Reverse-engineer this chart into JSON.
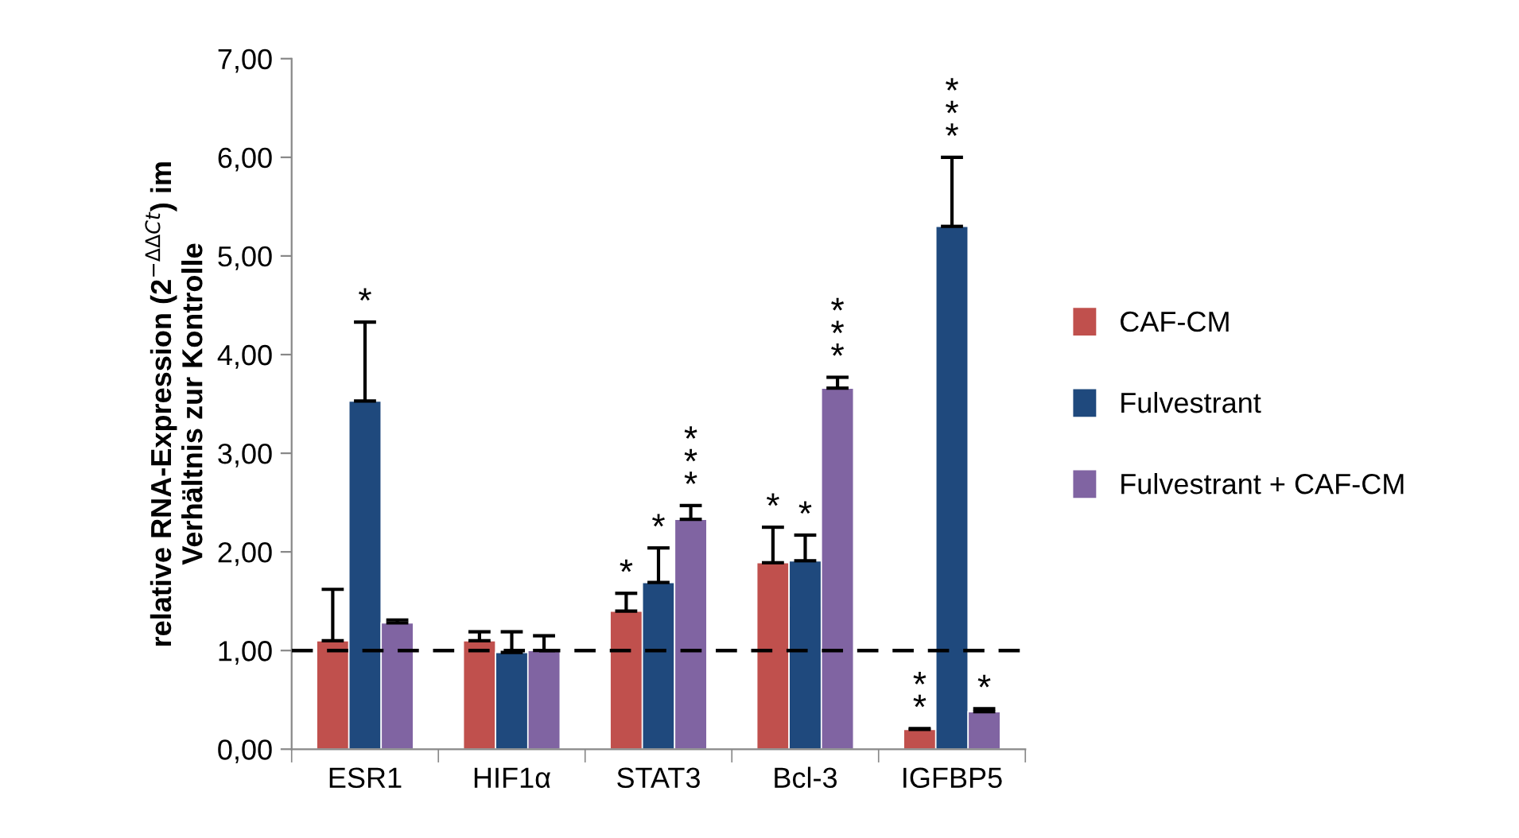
{
  "chart_data": {
    "type": "bar",
    "ylabel": "relative RNA-Expression (2$^{−ΔΔCt}$) im\nVerhältnis zur Kontrolle",
    "categories": [
      "ESR1",
      "HIF1α",
      "STAT3",
      "Bcl-3",
      "IGFBP5"
    ],
    "series": [
      {
        "name": "CAF-CM",
        "color": "#c0504d",
        "values": [
          1.1,
          1.1,
          1.4,
          1.89,
          0.2
        ],
        "errors": [
          [
            1.1,
            1.62
          ],
          [
            1.1,
            1.19
          ],
          [
            1.4,
            1.58
          ],
          [
            1.89,
            2.25
          ],
          [
            0.2,
            0.21
          ]
        ],
        "value_labels": [
          null,
          null,
          "*",
          "*",
          "*\n*"
        ]
      },
      {
        "name": "Fulvestrant",
        "color": "#1f497d",
        "values": [
          3.53,
          0.98,
          1.69,
          1.91,
          5.3
        ],
        "errors": [
          [
            3.53,
            4.33
          ],
          [
            0.98,
            1.19
          ],
          [
            1.69,
            2.04
          ],
          [
            1.91,
            2.17
          ],
          [
            5.3,
            6.0
          ]
        ],
        "value_labels": [
          "*",
          null,
          "*",
          "*",
          "*\n*\n*"
        ]
      },
      {
        "name": "Fulvestrant + CAF-CM",
        "color": "#8064a2",
        "values": [
          1.28,
          1.0,
          2.33,
          3.66,
          0.38
        ],
        "errors": [
          [
            1.28,
            1.31
          ],
          [
            1.0,
            1.15
          ],
          [
            2.33,
            2.47
          ],
          [
            3.66,
            3.77
          ],
          [
            0.38,
            0.41
          ]
        ],
        "value_labels": [
          null,
          null,
          "*\n*\n*",
          "*\n*\n*",
          "*"
        ]
      }
    ],
    "ref_lines": [
      {
        "axis": "y",
        "value": 1.0,
        "color": "#000000",
        "line_style": "dashed"
      }
    ],
    "ylim": [
      0,
      7
    ],
    "yticks": [
      {
        "value": 0,
        "label": "0,00"
      },
      {
        "value": 1,
        "label": "1,00"
      },
      {
        "value": 2,
        "label": "2,00"
      },
      {
        "value": 3,
        "label": "3,00"
      },
      {
        "value": 4,
        "label": "4,00"
      },
      {
        "value": 5,
        "label": "5,00"
      },
      {
        "value": 6,
        "label": "6,00"
      },
      {
        "value": 7,
        "label": "7,00"
      }
    ],
    "legend": "right"
  }
}
